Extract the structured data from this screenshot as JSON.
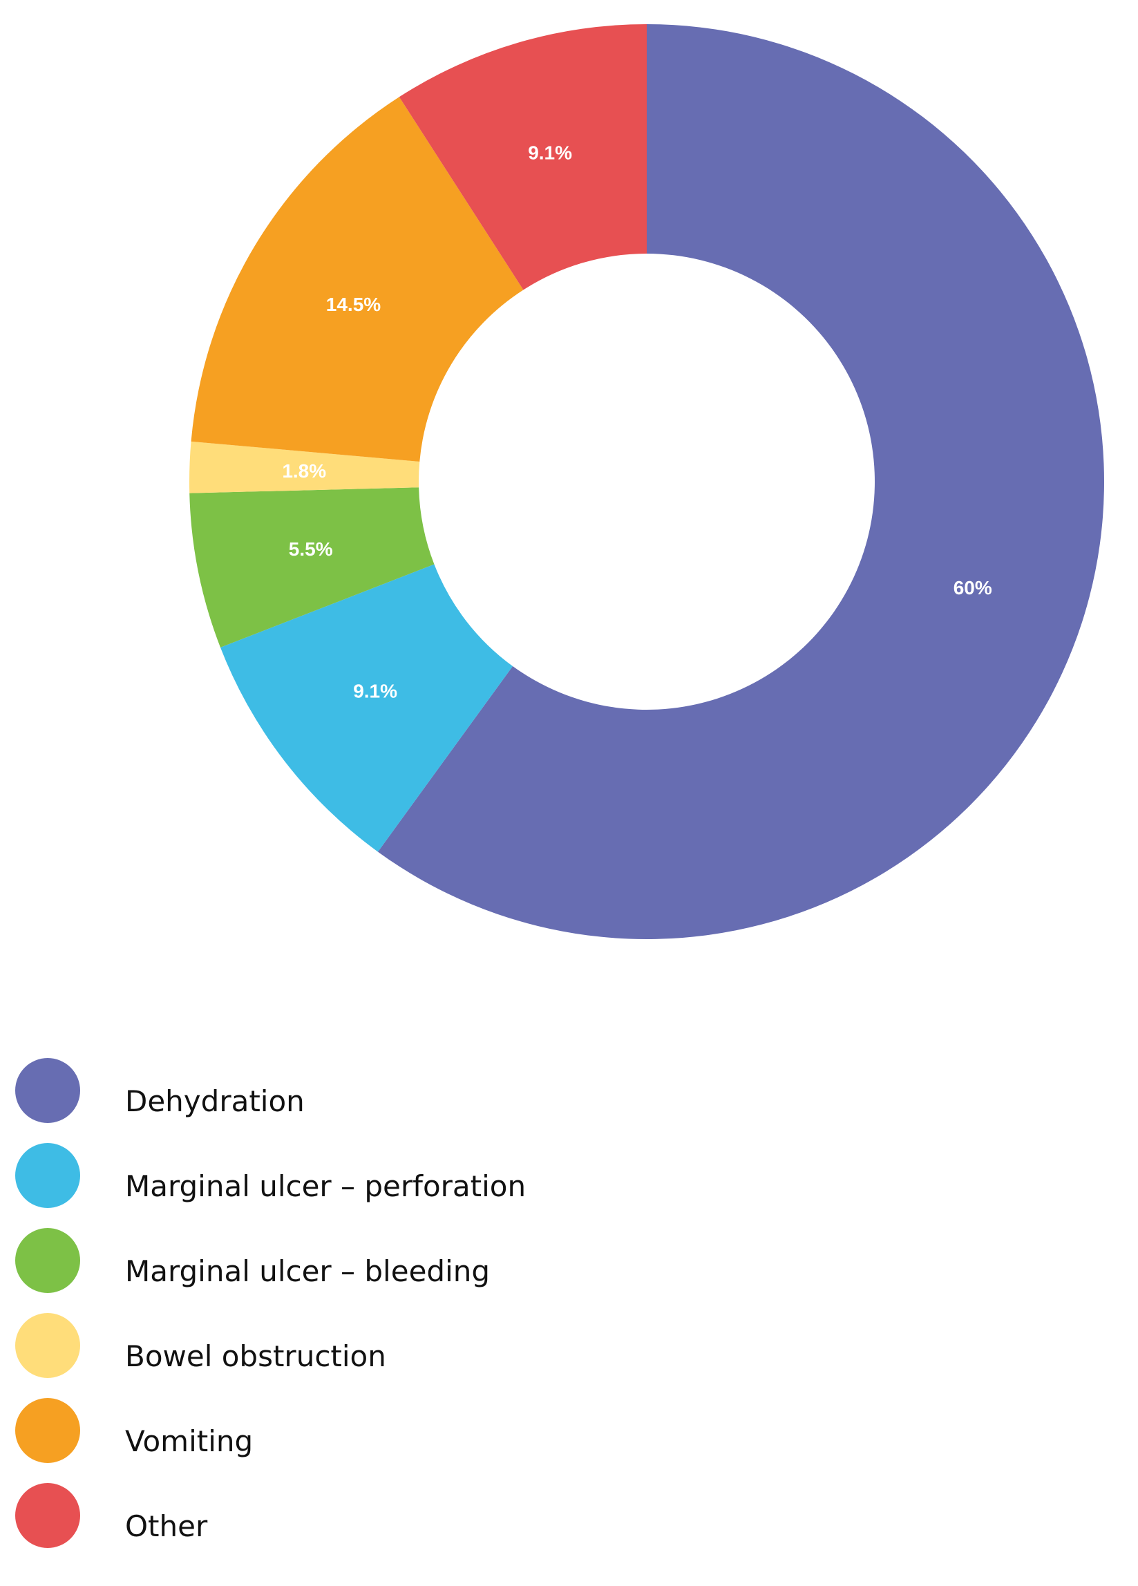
{
  "chart_data": {
    "type": "pie",
    "donut": true,
    "start_angle_deg": 0,
    "direction": "clockwise",
    "legend_position": "bottom-left",
    "title": "",
    "slices": [
      {
        "name": "Dehydration",
        "value": 60,
        "label": "60%",
        "color": "#676db2"
      },
      {
        "name": "Marginal ulcer – perforation",
        "value": 9.1,
        "label": "9.1%",
        "color": "#3ebce5"
      },
      {
        "name": "Marginal ulcer – bleeding",
        "value": 5.5,
        "label": "5.5%",
        "color": "#7dc146"
      },
      {
        "name": "Bowel obstruction",
        "value": 1.8,
        "label": "1.8%",
        "color": "#ffdd7a"
      },
      {
        "name": "Vomiting",
        "value": 14.5,
        "label": "14.5%",
        "color": "#f6a022"
      },
      {
        "name": "Other",
        "value": 9.1,
        "label": "9.1%",
        "color": "#e75052"
      }
    ]
  }
}
